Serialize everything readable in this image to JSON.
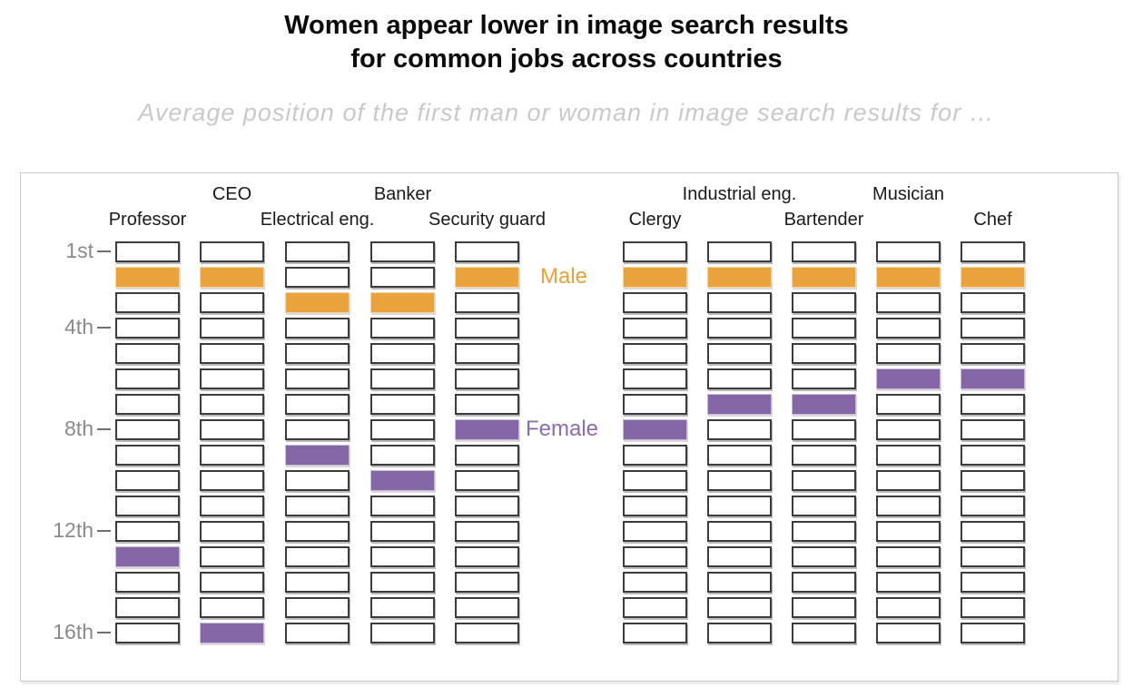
{
  "header": {
    "title_line1": "Women appear lower in image search results",
    "title_line2": "for common jobs across countries",
    "subtitle": "Average position of the first man or woman in image search results for …"
  },
  "chart_data": {
    "type": "heatmap",
    "description": "Grid of 16 result-position slots per job; colored cell marks average position of first man (orange) and first woman (purple).",
    "title": "Women appear lower in image search results for common jobs across countries",
    "subtitle": "Average position of the first man or woman in image search results for …",
    "rows": 16,
    "row_axis_ticks": [
      {
        "row": 1,
        "label": "1st"
      },
      {
        "row": 4,
        "label": "4th"
      },
      {
        "row": 8,
        "label": "8th"
      },
      {
        "row": 12,
        "label": "12th"
      },
      {
        "row": 16,
        "label": "16th"
      }
    ],
    "series": [
      {
        "name": "Male",
        "box_color": "#E9A23C",
        "label_color": "#EBA23E"
      },
      {
        "name": "Female",
        "box_color": "#8566A6",
        "label_color": "#8C6BAE"
      }
    ],
    "jobs": [
      {
        "label": "Professor",
        "group": "left",
        "header_row": "bottom",
        "male_position": 2,
        "female_position": 13
      },
      {
        "label": "CEO",
        "group": "left",
        "header_row": "top",
        "male_position": 2,
        "female_position": 16
      },
      {
        "label": "Electrical eng.",
        "group": "left",
        "header_row": "bottom",
        "male_position": 3,
        "female_position": 9
      },
      {
        "label": "Banker",
        "group": "left",
        "header_row": "top",
        "male_position": 3,
        "female_position": 10
      },
      {
        "label": "Security guard",
        "group": "left",
        "header_row": "bottom",
        "male_position": 2,
        "female_position": 8
      },
      {
        "label": "Clergy",
        "group": "right",
        "header_row": "bottom",
        "male_position": 2,
        "female_position": 8
      },
      {
        "label": "Industrial eng.",
        "group": "right",
        "header_row": "top",
        "male_position": 2,
        "female_position": 7
      },
      {
        "label": "Bartender",
        "group": "right",
        "header_row": "bottom",
        "male_position": 2,
        "female_position": 7
      },
      {
        "label": "Musician",
        "group": "right",
        "header_row": "top",
        "male_position": 2,
        "female_position": 6
      },
      {
        "label": "Chef",
        "group": "right",
        "header_row": "bottom",
        "male_position": 2,
        "female_position": 6
      }
    ],
    "legend_anchor": {
      "male_row": 2,
      "female_row": 8,
      "position": "between-groups"
    }
  }
}
